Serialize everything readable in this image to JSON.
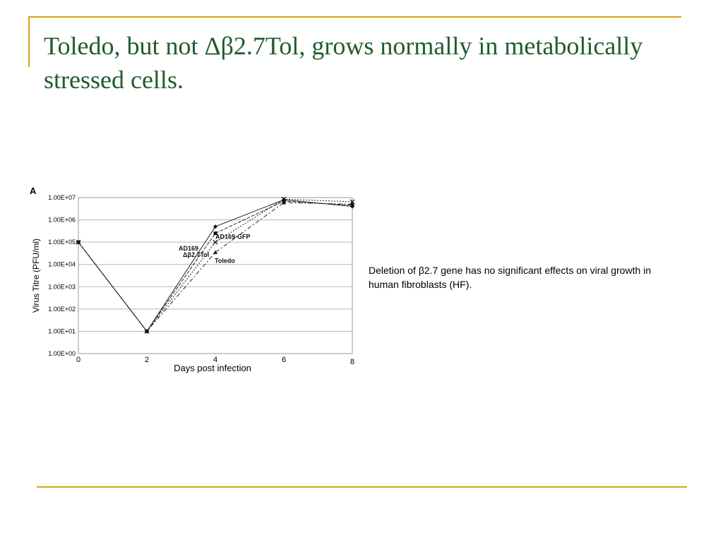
{
  "slide": {
    "title": "Toledo, but not Δβ2.7Tol, grows normally in metabolically stressed cells.",
    "caption": "Deletion of β2.7 gene has no significant effects on viral growth in human fibroblasts (HF).",
    "accent_color": "#d9a21b",
    "title_color": "#1f5c2f"
  },
  "chart_data": {
    "type": "line",
    "panel_label": "A",
    "xlabel": "Days post infection",
    "ylabel": "Virus Titre (PFU/ml)",
    "x_ticks": [
      0,
      2,
      4,
      6,
      8
    ],
    "y_ticks": [
      "1.00E+00",
      "1.00E+01",
      "1.00E+02",
      "1.00E+03",
      "1.00E+04",
      "1.00E+05",
      "1.00E+06",
      "1.00E+07"
    ],
    "ylim": [
      1,
      10000000
    ],
    "y_scale": "log",
    "grid": true,
    "series": [
      {
        "name": "AD169",
        "marker": "diamond",
        "dash": "",
        "x": [
          0,
          2,
          4,
          6,
          8
        ],
        "values": [
          100000,
          10,
          500000,
          8000000,
          4000000
        ]
      },
      {
        "name": "AD169-GFP",
        "marker": "square",
        "dash": "5,2",
        "x": [
          0,
          2,
          4,
          6,
          8
        ],
        "values": [
          100000,
          10,
          250000,
          7000000,
          4500000
        ]
      },
      {
        "name": "Toledo",
        "marker": "triangle",
        "dash": "6,3,2,3",
        "x": [
          0,
          2,
          4,
          6,
          8
        ],
        "values": [
          100000,
          10,
          35000,
          6000000,
          5000000
        ]
      },
      {
        "name": "Δβ2.7Tol",
        "marker": "cross",
        "dash": "2,2",
        "x": [
          0,
          2,
          4,
          6,
          8
        ],
        "values": [
          100000,
          10,
          100000,
          8500000,
          6500000
        ]
      }
    ]
  }
}
